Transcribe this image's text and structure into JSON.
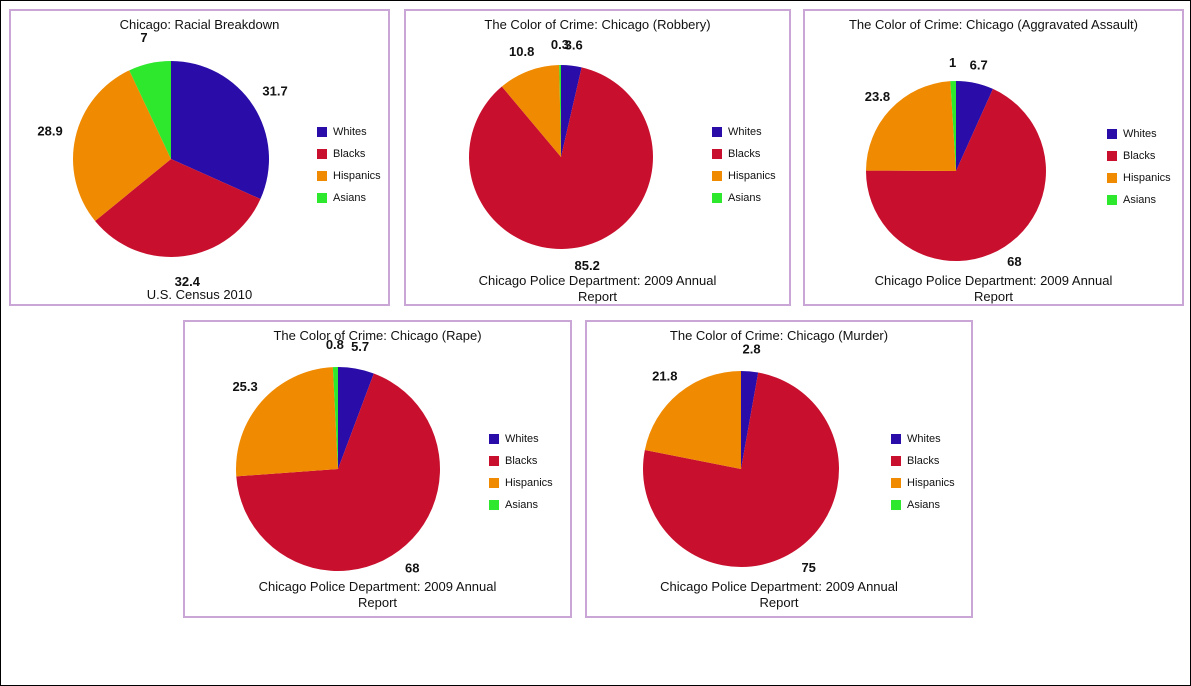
{
  "chart_data": [
    {
      "type": "pie",
      "title": "Chicago: Racial Breakdown",
      "caption": "U.S. Census 2010",
      "categories": [
        "Whites",
        "Blacks",
        "Hispanics",
        "Asians"
      ],
      "values": [
        31.7,
        32.4,
        28.9,
        7
      ],
      "value_labels": [
        "31.7",
        "32.4",
        "28.9",
        "7"
      ],
      "colors": [
        "#2a0ca8",
        "#c8102e",
        "#f08a00",
        "#2ee82e"
      ],
      "legend": "right"
    },
    {
      "type": "pie",
      "title": "The Color of Crime: Chicago (Robbery)",
      "caption": "Chicago Police Department: 2009 Annual Report",
      "categories": [
        "Whites",
        "Blacks",
        "Hispanics",
        "Asians"
      ],
      "values": [
        3.6,
        85.2,
        10.8,
        0.3
      ],
      "value_labels": [
        "3.6",
        "85.2",
        "10.8",
        "0.3"
      ],
      "colors": [
        "#2a0ca8",
        "#c8102e",
        "#f08a00",
        "#2ee82e"
      ],
      "legend": "right"
    },
    {
      "type": "pie",
      "title": "The Color of Crime: Chicago (Aggravated Assault)",
      "caption": "Chicago Police Department: 2009 Annual Report",
      "categories": [
        "Whites",
        "Blacks",
        "Hispanics",
        "Asians"
      ],
      "values": [
        6.7,
        68,
        23.8,
        1
      ],
      "value_labels": [
        "6.7",
        "68",
        "23.8",
        "1"
      ],
      "colors": [
        "#2a0ca8",
        "#c8102e",
        "#f08a00",
        "#2ee82e"
      ],
      "legend": "right"
    },
    {
      "type": "pie",
      "title": "The Color of Crime: Chicago (Rape)",
      "caption": "Chicago Police Department: 2009 Annual Report",
      "categories": [
        "Whites",
        "Blacks",
        "Hispanics",
        "Asians"
      ],
      "values": [
        5.7,
        68,
        25.3,
        0.8
      ],
      "value_labels": [
        "5.7",
        "68",
        "25.3",
        "0.8"
      ],
      "colors": [
        "#2a0ca8",
        "#c8102e",
        "#f08a00",
        "#2ee82e"
      ],
      "legend": "right"
    },
    {
      "type": "pie",
      "title": "The Color of Crime: Chicago (Murder)",
      "caption": "Chicago Police Department: 2009 Annual Report",
      "categories": [
        "Whites",
        "Blacks",
        "Hispanics",
        "Asians"
      ],
      "values": [
        2.8,
        75,
        21.8,
        0
      ],
      "value_labels": [
        "2.8",
        "75",
        "21.8",
        ""
      ],
      "colors": [
        "#2a0ca8",
        "#c8102e",
        "#f08a00",
        "#2ee82e"
      ],
      "legend": "right"
    }
  ]
}
